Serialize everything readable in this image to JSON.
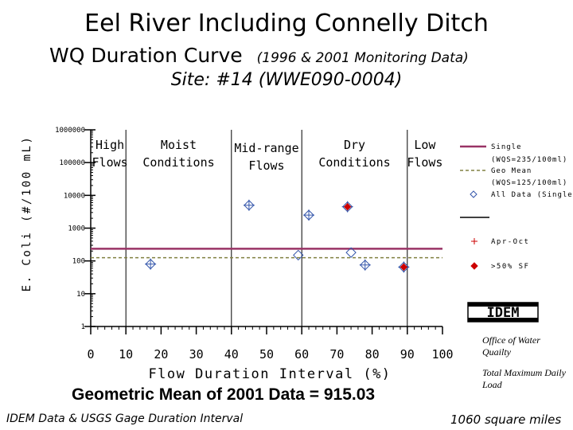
{
  "header": {
    "title": "Eel River Including Connelly Ditch",
    "subtitle_main": "WQ Duration Curve",
    "subtitle_note": "(1996 & 2001 Monitoring Data)",
    "site": "Site: #14 (WWE090-0004)"
  },
  "footer": {
    "geomean": "Geometric Mean of 2001 Data = 915.03",
    "source": "IDEM Data & USGS Gage Duration Interval",
    "area": "1060 square miles",
    "office": "Office of Water Quailty",
    "tmdl": "Total Maximum Daily Load",
    "logo_text": "IDEM"
  },
  "colors": {
    "single_line": "#993366",
    "geomean_line": "#808040",
    "all_data_marker": "#3355aa",
    "over50_marker": "#cc0000",
    "axis": "#000000"
  },
  "chart_data": {
    "type": "scatter",
    "xlabel": "Flow Duration Interval (%)",
    "ylabel": "E. Coli (#/100 mL)",
    "xlim": [
      0,
      100
    ],
    "ylim": [
      1,
      1000000
    ],
    "yscale": "log",
    "xticks": [
      0,
      10,
      20,
      30,
      40,
      50,
      60,
      70,
      80,
      90,
      100
    ],
    "yticks": [
      1,
      10,
      100,
      1000,
      10000,
      100000,
      1000000
    ],
    "ytick_labels": [
      "1",
      "10",
      "100",
      "1000",
      "10000",
      "100000",
      "1000000"
    ],
    "flow_zones": [
      {
        "label": [
          "High",
          "Flows"
        ],
        "x_center": 5
      },
      {
        "label": [
          "Moist",
          "Conditions"
        ],
        "x_center": 25
      },
      {
        "label": [
          "Mid-range",
          "Flows"
        ],
        "x_center": 50
      },
      {
        "label": [
          "Dry",
          "Conditions"
        ],
        "x_center": 75
      },
      {
        "label": [
          "Low",
          "Flows"
        ],
        "x_center": 95
      }
    ],
    "zone_boundaries": [
      10,
      40,
      60,
      90
    ],
    "reference_lines": [
      {
        "name": "Single (WQS=235/100ml)",
        "y": 235,
        "style": "solid"
      },
      {
        "name": "Geo Mean (WQS=125/100ml)",
        "y": 125,
        "style": "dashed"
      }
    ],
    "series": [
      {
        "name": "All Data (Single)",
        "marker": "diamond",
        "points": [
          [
            17,
            80
          ],
          [
            45,
            5000
          ],
          [
            59,
            150
          ],
          [
            62,
            2500
          ],
          [
            73,
            4500
          ],
          [
            74,
            180
          ],
          [
            78,
            75
          ],
          [
            89,
            65
          ]
        ]
      },
      {
        "name": "Apr-Oct",
        "marker": "plus",
        "points": [
          [
            17,
            80
          ],
          [
            45,
            5000
          ],
          [
            62,
            2500
          ],
          [
            73,
            4500
          ],
          [
            78,
            75
          ],
          [
            89,
            65
          ]
        ]
      },
      {
        "name": ">50% SF",
        "marker": "filled-diamond",
        "points": [
          [
            73,
            4500
          ],
          [
            89,
            65
          ]
        ]
      }
    ],
    "legend": {
      "placement": "right",
      "entries": [
        {
          "label": "Single",
          "sublabel": "(WQS=235/100ml)",
          "kind": "solid-line"
        },
        {
          "label": "Geo Mean",
          "sublabel": "",
          "kind": "dashed-line"
        },
        {
          "label": "All Data (Single)",
          "sublabel": "(WQS=125/100ml)",
          "kind": "diamond"
        },
        {
          "label": "",
          "sublabel": "",
          "kind": "black-line"
        },
        {
          "label": "Apr-Oct",
          "sublabel": "",
          "kind": "plus"
        },
        {
          "label": ">50% SF",
          "sublabel": "",
          "kind": "filled-diamond"
        }
      ]
    }
  }
}
